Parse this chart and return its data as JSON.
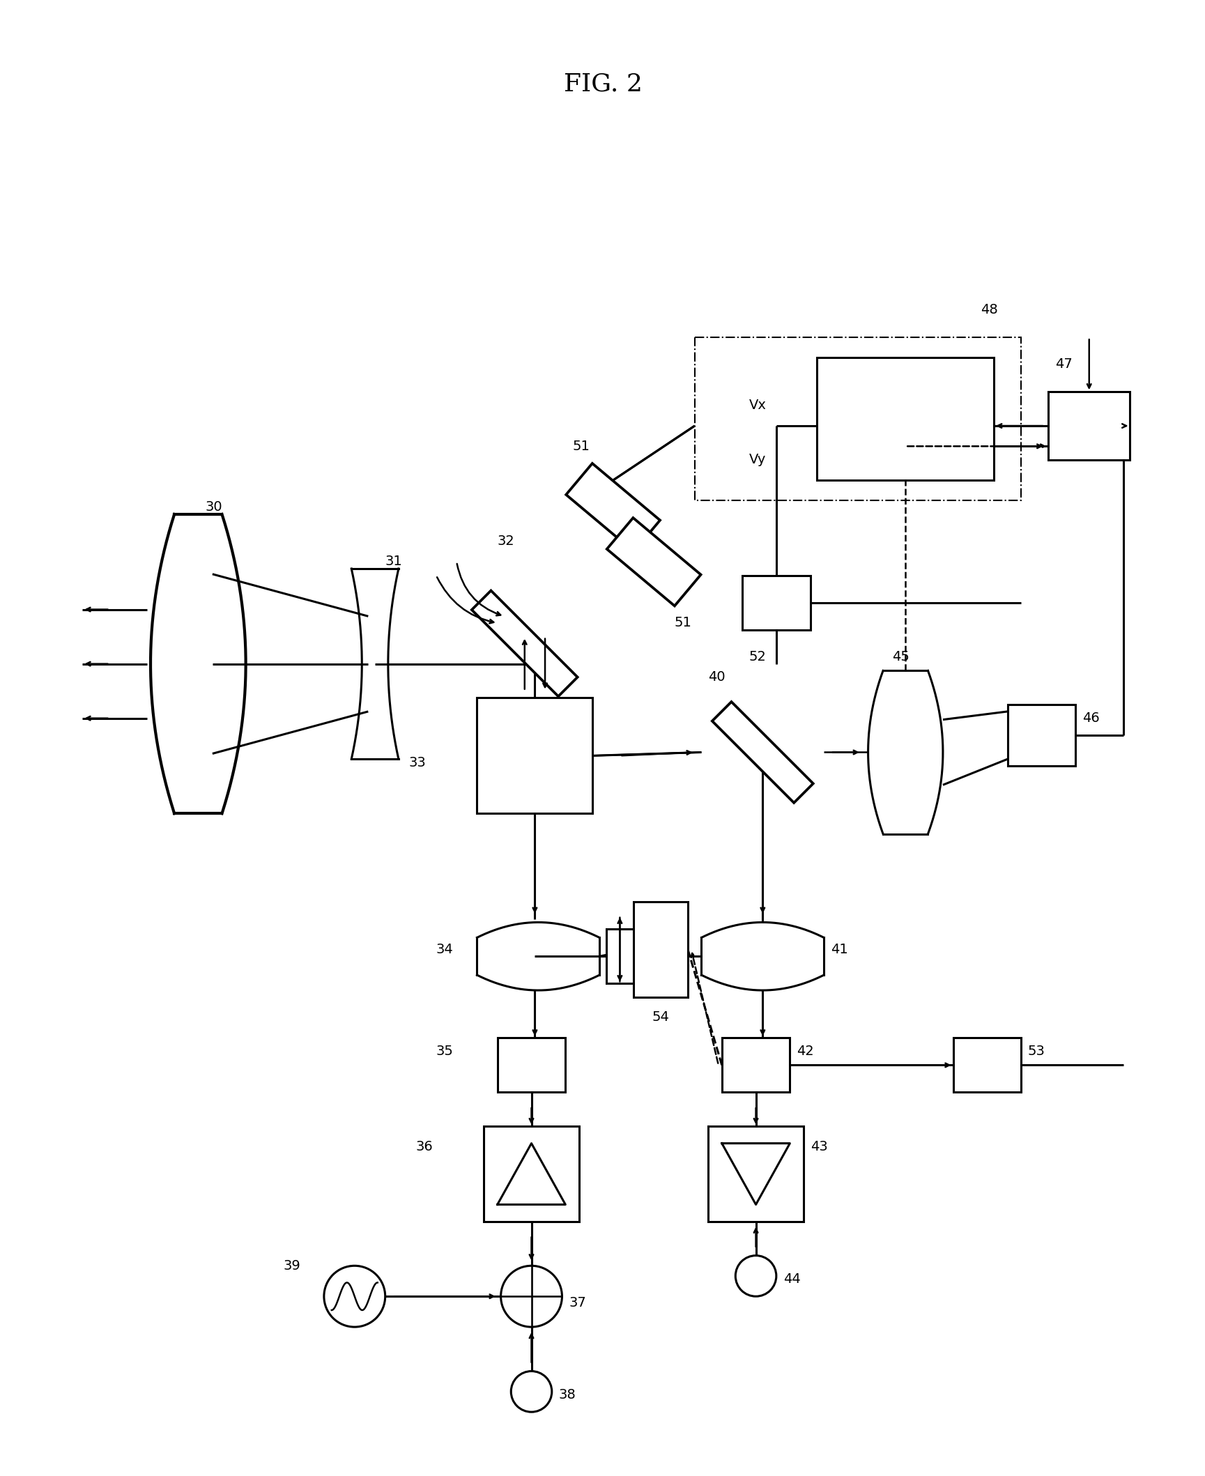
{
  "title": "FIG. 2",
  "title_fontsize": 26,
  "bg_color": "#ffffff",
  "line_color": "#000000",
  "lw": 1.8,
  "lw_thick": 2.2
}
